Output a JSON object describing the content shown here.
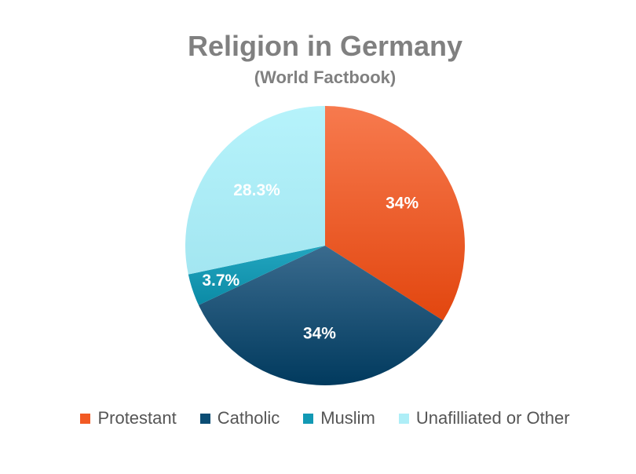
{
  "chart_data": {
    "type": "pie",
    "title": "Religion in Germany",
    "subtitle": "(World Factbook)",
    "slices": [
      {
        "name": "Protestant",
        "value": 34,
        "label": "34%",
        "color": "#f25a24",
        "color_light": "#f77a4e",
        "color_dark": "#e2460f",
        "label_color": "#ffffff"
      },
      {
        "name": "Catholic",
        "value": 34,
        "label": "34%",
        "color": "#0b4d74",
        "color_light": "#3a6b8e",
        "color_dark": "#013a5e",
        "label_color": "#ffffff"
      },
      {
        "name": "Muslim",
        "value": 3.7,
        "label": "3.7%",
        "color": "#1299b4",
        "color_light": "#23a6c0",
        "color_dark": "#0b8aa5",
        "label_color": "#ffffff"
      },
      {
        "name": "Unafilliated or Other",
        "value": 28.3,
        "label": "28.3%",
        "color": "#aeeef7",
        "color_light": "#b6f3fb",
        "color_dark": "#a3e6f1",
        "label_color": "#ffffff"
      }
    ],
    "legend_position": "bottom"
  }
}
